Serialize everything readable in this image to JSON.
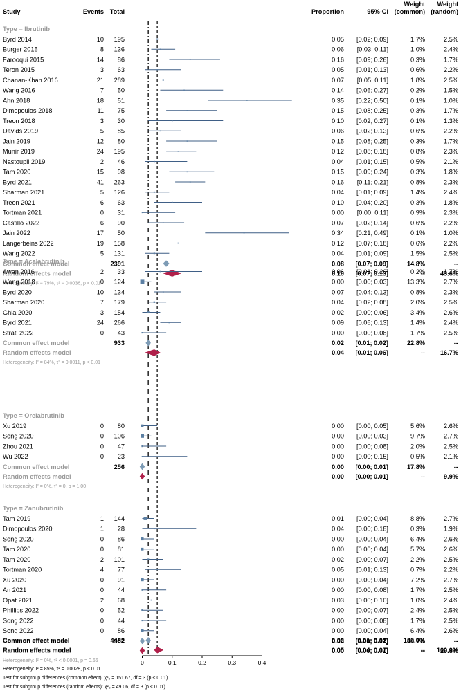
{
  "chart_data": {
    "type": "forest",
    "headers": {
      "study": "Study",
      "events": "Events",
      "total": "Total",
      "proportion": "Proportion",
      "ci": "95%-CI",
      "weight_common": [
        "Weight",
        "(common)"
      ],
      "weight_random": [
        "Weight",
        "(random)"
      ]
    },
    "x_ticks": [
      "0",
      "0.1",
      "0.2",
      "0.3",
      "0.4"
    ],
    "x_range": [
      0,
      0.4
    ],
    "common_line": 0.02,
    "random_line": 0.05,
    "groups": [
      {
        "title": "Type = Ibrutinib",
        "studies": [
          {
            "study": "Byrd 2014",
            "events": "10",
            "total": "195",
            "prop": "0.05",
            "ci": "[0.02; 0.09]",
            "wc": "1.7%",
            "wr": "2.5%"
          },
          {
            "study": "Burger 2015",
            "events": "8",
            "total": "136",
            "prop": "0.06",
            "ci": "[0.03; 0.11]",
            "wc": "1.0%",
            "wr": "2.4%"
          },
          {
            "study": "Farooqui 2015",
            "events": "14",
            "total": "86",
            "prop": "0.16",
            "ci": "[0.09; 0.26]",
            "wc": "0.3%",
            "wr": "1.7%"
          },
          {
            "study": "Teron 2015",
            "events": "3",
            "total": "63",
            "prop": "0.05",
            "ci": "[0.01; 0.13]",
            "wc": "0.6%",
            "wr": "2.2%"
          },
          {
            "study": "Chanan-Khan 2016",
            "events": "21",
            "total": "289",
            "prop": "0.07",
            "ci": "[0.05; 0.11]",
            "wc": "1.8%",
            "wr": "2.5%"
          },
          {
            "study": "Wang 2016",
            "events": "7",
            "total": "50",
            "prop": "0.14",
            "ci": "[0.06; 0.27]",
            "wc": "0.2%",
            "wr": "1.5%"
          },
          {
            "study": "Ahn 2018",
            "events": "18",
            "total": "51",
            "prop": "0.35",
            "ci": "[0.22; 0.50]",
            "wc": "0.1%",
            "wr": "1.0%"
          },
          {
            "study": "Dimopoulos 2018",
            "events": "11",
            "total": "75",
            "prop": "0.15",
            "ci": "[0.08; 0.25]",
            "wc": "0.3%",
            "wr": "1.7%"
          },
          {
            "study": "Treon 2018",
            "events": "3",
            "total": "30",
            "prop": "0.10",
            "ci": "[0.02; 0.27]",
            "wc": "0.1%",
            "wr": "1.3%"
          },
          {
            "study": "Davids 2019",
            "events": "5",
            "total": "85",
            "prop": "0.06",
            "ci": "[0.02; 0.13]",
            "wc": "0.6%",
            "wr": "2.2%"
          },
          {
            "study": "Jain 2019",
            "events": "12",
            "total": "80",
            "prop": "0.15",
            "ci": "[0.08; 0.25]",
            "wc": "0.3%",
            "wr": "1.7%"
          },
          {
            "study": "Munir 2019",
            "events": "24",
            "total": "195",
            "prop": "0.12",
            "ci": "[0.08; 0.18]",
            "wc": "0.8%",
            "wr": "2.3%"
          },
          {
            "study": "Nastoupil 2019",
            "events": "2",
            "total": "46",
            "prop": "0.04",
            "ci": "[0.01; 0.15]",
            "wc": "0.5%",
            "wr": "2.1%"
          },
          {
            "study": "Tam 2020",
            "events": "15",
            "total": "98",
            "prop": "0.15",
            "ci": "[0.09; 0.24]",
            "wc": "0.3%",
            "wr": "1.8%"
          },
          {
            "study": "Byrd 2021",
            "events": "41",
            "total": "263",
            "prop": "0.16",
            "ci": "[0.11; 0.21]",
            "wc": "0.8%",
            "wr": "2.3%"
          },
          {
            "study": "Sharman 2021",
            "events": "5",
            "total": "126",
            "prop": "0.04",
            "ci": "[0.01; 0.09]",
            "wc": "1.4%",
            "wr": "2.4%"
          },
          {
            "study": "Treon 2021",
            "events": "6",
            "total": "63",
            "prop": "0.10",
            "ci": "[0.04; 0.20]",
            "wc": "0.3%",
            "wr": "1.8%"
          },
          {
            "study": "Tortman 2021",
            "events": "0",
            "total": "31",
            "prop": "0.00",
            "ci": "[0.00; 0.11]",
            "wc": "0.9%",
            "wr": "2.3%"
          },
          {
            "study": "Castillo 2022",
            "events": "6",
            "total": "90",
            "prop": "0.07",
            "ci": "[0.02; 0.14]",
            "wc": "0.6%",
            "wr": "2.2%"
          },
          {
            "study": "Jain 2022",
            "events": "17",
            "total": "50",
            "prop": "0.34",
            "ci": "[0.21; 0.49]",
            "wc": "0.1%",
            "wr": "1.0%"
          },
          {
            "study": "Langerbeins 2022",
            "events": "19",
            "total": "158",
            "prop": "0.12",
            "ci": "[0.07; 0.18]",
            "wc": "0.6%",
            "wr": "2.2%"
          },
          {
            "study": "Wang 2022",
            "events": "5",
            "total": "131",
            "prop": "0.04",
            "ci": "[0.01; 0.09]",
            "wc": "1.5%",
            "wr": "2.5%"
          }
        ],
        "common": {
          "label": "Common effect model",
          "total": "2391",
          "prop": "0.08",
          "ci": "[0.07; 0.09]",
          "wc": "14.8%",
          "wr": "--"
        },
        "random": {
          "label": "Random effects model",
          "prop": "0.10",
          "ci": "[0.07; 0.13]",
          "wc": "--",
          "wr": "43.6%"
        },
        "het": "Heterogeneity: I² = 79%, τ² = 0.0036, p < 0.01"
      },
      {
        "title": "Type = Acalabrutinib",
        "studies": [
          {
            "study": "Awan 2016",
            "events": "2",
            "total": "33",
            "prop": "0.06",
            "ci": "[0.01; 0.20]",
            "wc": "0.2%",
            "wr": "1.7%"
          },
          {
            "study": "Wang 2018",
            "events": "0",
            "total": "124",
            "prop": "0.00",
            "ci": "[0.00; 0.03]",
            "wc": "13.3%",
            "wr": "2.7%"
          },
          {
            "study": "Byrd 2020",
            "events": "10",
            "total": "134",
            "prop": "0.07",
            "ci": "[0.04; 0.13]",
            "wc": "0.8%",
            "wr": "2.3%"
          },
          {
            "study": "Sharman 2020",
            "events": "7",
            "total": "179",
            "prop": "0.04",
            "ci": "[0.02; 0.08]",
            "wc": "2.0%",
            "wr": "2.5%"
          },
          {
            "study": "Ghia 2020",
            "events": "3",
            "total": "154",
            "prop": "0.02",
            "ci": "[0.00; 0.06]",
            "wc": "3.4%",
            "wr": "2.6%"
          },
          {
            "study": "Byrd 2021",
            "events": "24",
            "total": "266",
            "prop": "0.09",
            "ci": "[0.06; 0.13]",
            "wc": "1.4%",
            "wr": "2.4%"
          },
          {
            "study": "Strati 2022",
            "events": "0",
            "total": "43",
            "prop": "0.00",
            "ci": "[0.00; 0.08]",
            "wc": "1.7%",
            "wr": "2.5%"
          }
        ],
        "common": {
          "label": "Common effect model",
          "total": "933",
          "prop": "0.02",
          "ci": "[0.01; 0.02]",
          "wc": "22.8%",
          "wr": "--"
        },
        "random": {
          "label": "Random effects model",
          "prop": "0.04",
          "ci": "[0.01; 0.06]",
          "wc": "--",
          "wr": "16.7%"
        },
        "het": "Heterogeneity: I² = 84%, τ² = 0.0011, p < 0.01"
      },
      {
        "title": "Type = Orelabrutinib",
        "studies": [
          {
            "study": "Xu 2019",
            "events": "0",
            "total": "80",
            "prop": "0.00",
            "ci": "[0.00; 0.05]",
            "wc": "5.6%",
            "wr": "2.6%"
          },
          {
            "study": "Song 2020",
            "events": "0",
            "total": "106",
            "prop": "0.00",
            "ci": "[0.00; 0.03]",
            "wc": "9.7%",
            "wr": "2.7%"
          },
          {
            "study": "Zhou 2021",
            "events": "0",
            "total": "47",
            "prop": "0.00",
            "ci": "[0.00; 0.08]",
            "wc": "2.0%",
            "wr": "2.5%"
          },
          {
            "study": "Wu 2022",
            "events": "0",
            "total": "23",
            "prop": "0.00",
            "ci": "[0.00; 0.15]",
            "wc": "0.5%",
            "wr": "2.1%"
          }
        ],
        "common": {
          "label": "Common effect model",
          "total": "256",
          "prop": "0.00",
          "ci": "[0.00; 0.01]",
          "wc": "17.8%",
          "wr": "--"
        },
        "random": {
          "label": "Random effects model",
          "prop": "0.00",
          "ci": "[0.00; 0.01]",
          "wc": "--",
          "wr": "9.9%"
        },
        "het": "Heterogeneity: I² = 0%, τ² = 0, p = 1.00"
      },
      {
        "title": "Type = Zanubrutinib",
        "studies": [
          {
            "study": "Tam 2019",
            "events": "1",
            "total": "144",
            "prop": "0.01",
            "ci": "[0.00; 0.04]",
            "wc": "8.8%",
            "wr": "2.7%"
          },
          {
            "study": "Dimopoulos 2020",
            "events": "1",
            "total": "28",
            "prop": "0.04",
            "ci": "[0.00; 0.18]",
            "wc": "0.3%",
            "wr": "1.9%"
          },
          {
            "study": "Song 2020",
            "events": "0",
            "total": "86",
            "prop": "0.00",
            "ci": "[0.00; 0.04]",
            "wc": "6.4%",
            "wr": "2.6%"
          },
          {
            "study": "Tam 2020",
            "events": "0",
            "total": "81",
            "prop": "0.00",
            "ci": "[0.00; 0.04]",
            "wc": "5.7%",
            "wr": "2.6%"
          },
          {
            "study": "Tam 2020",
            "events": "2",
            "total": "101",
            "prop": "0.02",
            "ci": "[0.00; 0.07]",
            "wc": "2.2%",
            "wr": "2.5%"
          },
          {
            "study": "Tortman 2020",
            "events": "4",
            "total": "77",
            "prop": "0.05",
            "ci": "[0.01; 0.13]",
            "wc": "0.7%",
            "wr": "2.2%"
          },
          {
            "study": "Xu 2020",
            "events": "0",
            "total": "91",
            "prop": "0.00",
            "ci": "[0.00; 0.04]",
            "wc": "7.2%",
            "wr": "2.7%"
          },
          {
            "study": "An 2021",
            "events": "0",
            "total": "44",
            "prop": "0.00",
            "ci": "[0.00; 0.08]",
            "wc": "1.7%",
            "wr": "2.5%"
          },
          {
            "study": "Opat 2021",
            "events": "2",
            "total": "68",
            "prop": "0.03",
            "ci": "[0.00; 0.10]",
            "wc": "1.0%",
            "wr": "2.4%"
          },
          {
            "study": "Phillips 2022",
            "events": "0",
            "total": "52",
            "prop": "0.00",
            "ci": "[0.00; 0.07]",
            "wc": "2.4%",
            "wr": "2.5%"
          },
          {
            "study": "Song 2022",
            "events": "0",
            "total": "44",
            "prop": "0.00",
            "ci": "[0.00; 0.08]",
            "wc": "1.7%",
            "wr": "2.5%"
          },
          {
            "study": "Song 2022",
            "events": "0",
            "total": "86",
            "prop": "0.00",
            "ci": "[0.00; 0.04]",
            "wc": "6.4%",
            "wr": "2.6%"
          }
        ],
        "common": {
          "label": "Common effect model",
          "total": "902",
          "prop": "0.00",
          "ci": "[0.00; 0.01]",
          "wc": "44.7%",
          "wr": "--"
        },
        "random": {
          "label": "Random effects model",
          "prop": "0.00",
          "ci": "[0.00; 0.01]",
          "wc": "--",
          "wr": "29.8%"
        },
        "het": "Heterogeneity: I² = 0%, τ² < 0.0001, p = 0.66"
      }
    ],
    "overall": {
      "common": {
        "label": "Common effect model",
        "total": "4482",
        "prop": "0.02",
        "ci": "[0.01; 0.02]",
        "wc": "100.0%",
        "wr": "--"
      },
      "random": {
        "label": "Random effects model",
        "prop": "0.05",
        "ci": "[0.04; 0.07]",
        "wc": "--",
        "wr": "100.0%"
      }
    },
    "footnotes": [
      "Heterogeneity: I² = 85%, τ² = 0.0028, p < 0.01",
      "Test for subgroup differences (common effect): χ²₃ = 151.67, df = 3 (p < 0.01)",
      "Test for subgroup differences (random effects): χ²₃ = 49.06, df = 3 (p < 0.01)"
    ],
    "colors": {
      "study_square": "#5b7fa3",
      "ci_line": "#3f5f86",
      "common_diamond": "#7d9bb5",
      "random_diamond": "#b0204a",
      "grey_text": "#999999"
    }
  }
}
